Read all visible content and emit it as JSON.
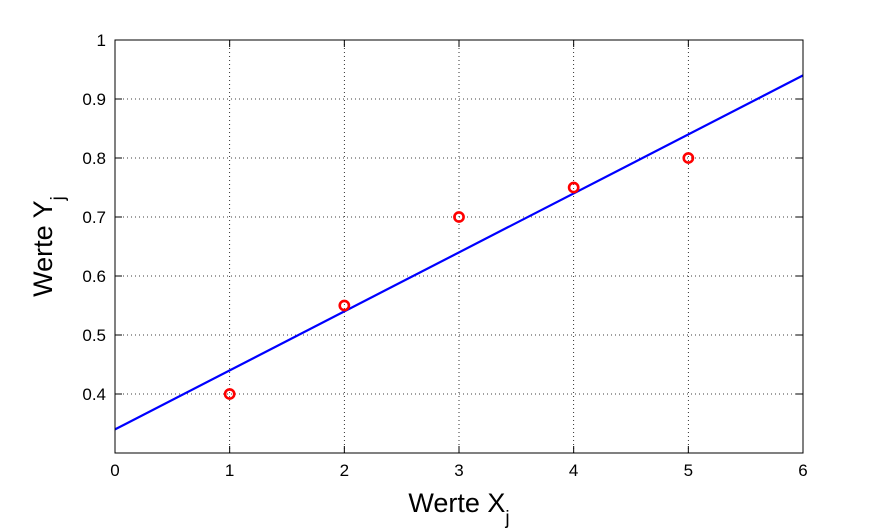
{
  "chart_data": {
    "type": "scatter",
    "xlabel": "Werte X",
    "xlabel_subscript": "j",
    "ylabel": "Werte Y",
    "ylabel_subscript": "j",
    "xlim": [
      0,
      6
    ],
    "ylim": [
      0.3,
      1.0
    ],
    "xticks": [
      0,
      1,
      2,
      3,
      4,
      5,
      6
    ],
    "yticks": [
      0.4,
      0.5,
      0.6,
      0.7,
      0.8,
      0.9,
      1.0
    ],
    "xtick_labels": [
      "0",
      "1",
      "2",
      "3",
      "4",
      "5",
      "6"
    ],
    "ytick_labels": [
      "0.4",
      "0.5",
      "0.6",
      "0.7",
      "0.8",
      "0.9",
      "1"
    ],
    "grid": true,
    "series": [
      {
        "type": "scatter",
        "marker": "circle-open",
        "color": "#ff0000",
        "x": [
          1,
          2,
          3,
          4,
          5
        ],
        "y": [
          0.4,
          0.55,
          0.7,
          0.75,
          0.8
        ]
      },
      {
        "type": "line",
        "color": "#0000ff",
        "x": [
          0,
          6
        ],
        "y": [
          0.34,
          0.94
        ]
      }
    ]
  }
}
